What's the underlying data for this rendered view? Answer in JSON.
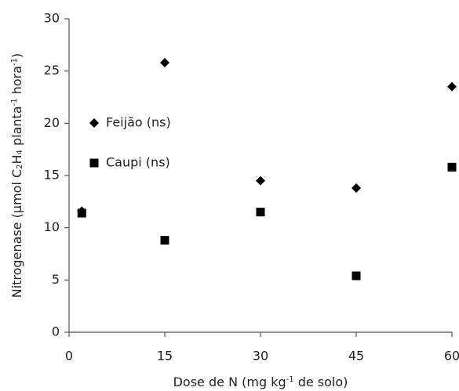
{
  "chart_data": {
    "type": "scatter",
    "xlabel": [
      {
        "text": "Dose de N (mg kg"
      },
      {
        "sup": "-1"
      },
      {
        "text": " de solo)"
      }
    ],
    "ylabel": [
      {
        "text": "Nitrogenase (µmol C"
      },
      {
        "sub": "2"
      },
      {
        "text": "H"
      },
      {
        "sub": "4"
      },
      {
        "text": " planta"
      },
      {
        "sup": "-1"
      },
      {
        "text": " hora"
      },
      {
        "sup": "-1"
      },
      {
        "text": ")"
      }
    ],
    "xlim": [
      0,
      60
    ],
    "ylim": [
      0,
      30
    ],
    "xticks": [
      0,
      15,
      30,
      45,
      60
    ],
    "yticks": [
      0,
      5,
      10,
      15,
      20,
      25,
      30
    ],
    "grid": false,
    "legend": "left",
    "series": [
      {
        "name": "Feijão (ns)",
        "color": "#000000",
        "marker": "diamond",
        "x": [
          2,
          15,
          30,
          45,
          60
        ],
        "values": [
          11.6,
          25.8,
          14.5,
          13.8,
          23.5
        ]
      },
      {
        "name": "Caupi (ns)",
        "color": "#000000",
        "marker": "square",
        "x": [
          2,
          15,
          30,
          45,
          60
        ],
        "values": [
          11.4,
          8.8,
          11.5,
          5.4,
          15.8
        ]
      }
    ]
  }
}
